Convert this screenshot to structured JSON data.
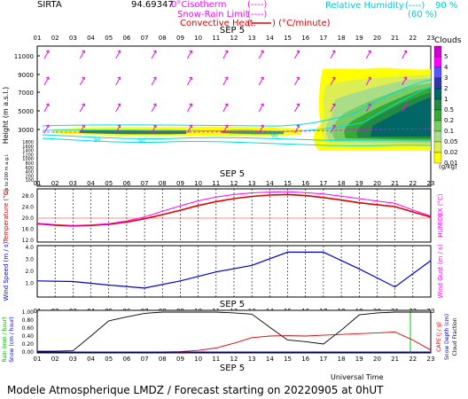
{
  "header": {
    "site": "SIRTA",
    "coords": "94.69347",
    "isotherm_label": "0°Cisotherm",
    "isotherm_sym": "(----)",
    "snowrain_label": "Snow-Rain Limit",
    "snowrain_sym": "(----)",
    "conv_label": "Convective Heat.",
    "conv_sym": "(",
    "conv_unit": ") (°C/minute)",
    "rh_label": "Relative Humidity",
    "rh_sym": "(----)",
    "rh_90": "90 %",
    "rh_60": "(60 %)"
  },
  "footer": {
    "universal_time": "Universal Time",
    "title": "Modele Atmospherique LMDZ / Forecast starting on 20220905 at 0hUT"
  },
  "colors": {
    "magenta": "#ff00ff",
    "red": "#dd0000",
    "cyan": "#00dddd",
    "blue": "#0000cc",
    "black": "#000000",
    "green": "#00cc00",
    "pink": "#ff66cc"
  },
  "chart_data": [
    {
      "id": "clouds",
      "type": "heatmap",
      "date_label": "SEP  5",
      "x_ticks": [
        "01",
        "02",
        "03",
        "04",
        "05",
        "06",
        "07",
        "08",
        "09",
        "10",
        "11",
        "12",
        "13",
        "14",
        "15",
        "16",
        "17",
        "18",
        "19",
        "20",
        "21",
        "22",
        "23"
      ],
      "ylabel": "Height  (m  a.s.l.)",
      "ylabel2": "Up to 200 m a.g.l.",
      "y_ticks_upper": [
        "11000",
        "9000",
        "7000",
        "5000",
        "3000"
      ],
      "y_ticks_lower": [
        "1800",
        "1600",
        "1400",
        "1200",
        "1000",
        "800",
        "600",
        "400",
        "200",
        "100"
      ],
      "colorbar_title": "Clouds",
      "colorbar_labels": [
        "5",
        "4",
        "3",
        "2",
        "1",
        "0.5",
        "0.2",
        "0.1",
        "0.05",
        "0.02",
        "0.01"
      ],
      "colorbar_unit": "(g/kg)",
      "colorbar_colors": [
        "#cc00cc",
        "#ff00ff",
        "#5555ff",
        "#3333aa",
        "#006666",
        "#228844",
        "#33aa33",
        "#77cc66",
        "#aadd88",
        "#ddee55",
        "#ffff00"
      ],
      "rh_contour_label": "90"
    },
    {
      "id": "temperature",
      "type": "line",
      "ylabel": "Temperature (°C)",
      "ylabel2": "HUMIDEX (°C)",
      "y_ticks": [
        "28.0",
        "24.0",
        "20.0",
        "16.0",
        "12.0"
      ],
      "ylim": [
        12,
        30
      ],
      "x": [
        1,
        2,
        3,
        4,
        5,
        6,
        7,
        8,
        9,
        10,
        11,
        12,
        13,
        14,
        15,
        16,
        17,
        18,
        19,
        20,
        21,
        22,
        23
      ],
      "series": [
        {
          "values": [
            18.0,
            17.5,
            17.2,
            17.4,
            17.8,
            18.6,
            19.8,
            21.3,
            22.9,
            24.6,
            26.0,
            27.1,
            27.9,
            28.4,
            28.6,
            28.2,
            27.5,
            26.6,
            25.6,
            24.9,
            24.2,
            22.3,
            20.4
          ]
        },
        {
          "values": [
            18.2,
            17.7,
            17.4,
            17.6,
            18.0,
            19.0,
            20.5,
            22.5,
            24.5,
            26.3,
            27.7,
            28.6,
            29.2,
            29.5,
            29.6,
            29.3,
            28.8,
            28.0,
            27.1,
            26.2,
            25.4,
            23.0,
            20.8
          ]
        }
      ]
    },
    {
      "id": "wind",
      "type": "line",
      "ylabel": "Wind Speed (m / s)",
      "ylabel2": "Wind Gust (m / s)",
      "y_ticks": [
        "4.0",
        "3.0",
        "2.0",
        "1.0"
      ],
      "ylim": [
        0,
        4
      ],
      "x": [
        1,
        3,
        5,
        7,
        9,
        11,
        13,
        15,
        17,
        19,
        21,
        23
      ],
      "series": [
        {
          "values": [
            1.2,
            1.15,
            0.85,
            0.6,
            1.2,
            1.95,
            2.5,
            3.6,
            3.6,
            2.2,
            0.7,
            2.9
          ]
        }
      ]
    },
    {
      "id": "rain",
      "type": "line",
      "ylabel": "Rain (mm / hour)",
      "ylabel2": "Snow (cm / hour)",
      "ylabel3": "CAPE (J / g)",
      "ylabel4": "Snow Depth (cm)",
      "ylabel5": "Cloud Fraction",
      "y_ticks": [
        "1.00",
        "0.80",
        "0.60",
        "0.40",
        "0.20",
        "0.00"
      ],
      "ylim": [
        0,
        1
      ],
      "date_label_top": "SEP  5",
      "date_label_bottom": "SEP  5",
      "x_ticks": [
        "01",
        "02",
        "03",
        "04",
        "05",
        "06",
        "07",
        "08",
        "09",
        "10",
        "11",
        "12",
        "13",
        "14",
        "15",
        "16",
        "17",
        "18",
        "19",
        "20",
        "21",
        "22",
        "23"
      ],
      "x": [
        1,
        2,
        3,
        4,
        5,
        6,
        7,
        8,
        9,
        10,
        11,
        12,
        13,
        14,
        15,
        16,
        17,
        18,
        19,
        20,
        21,
        22,
        23
      ],
      "series": [
        {
          "values": [
            0.02,
            0.02,
            0.03,
            0.4,
            0.78,
            0.88,
            0.97,
            1.0,
            1.0,
            1.0,
            1.0,
            0.98,
            0.95,
            0.62,
            0.3,
            0.26,
            0.2,
            0.55,
            0.93,
            0.98,
            1.0,
            1.0,
            1.0
          ]
        },
        {
          "values": [
            0,
            0,
            0,
            0,
            0,
            0,
            0,
            0,
            0.01,
            0.04,
            0.1,
            0.22,
            0.36,
            0.4,
            0.41,
            0.4,
            0.42,
            0.44,
            0.46,
            0.48,
            0.5,
            0.3,
            0.05
          ]
        }
      ]
    }
  ]
}
